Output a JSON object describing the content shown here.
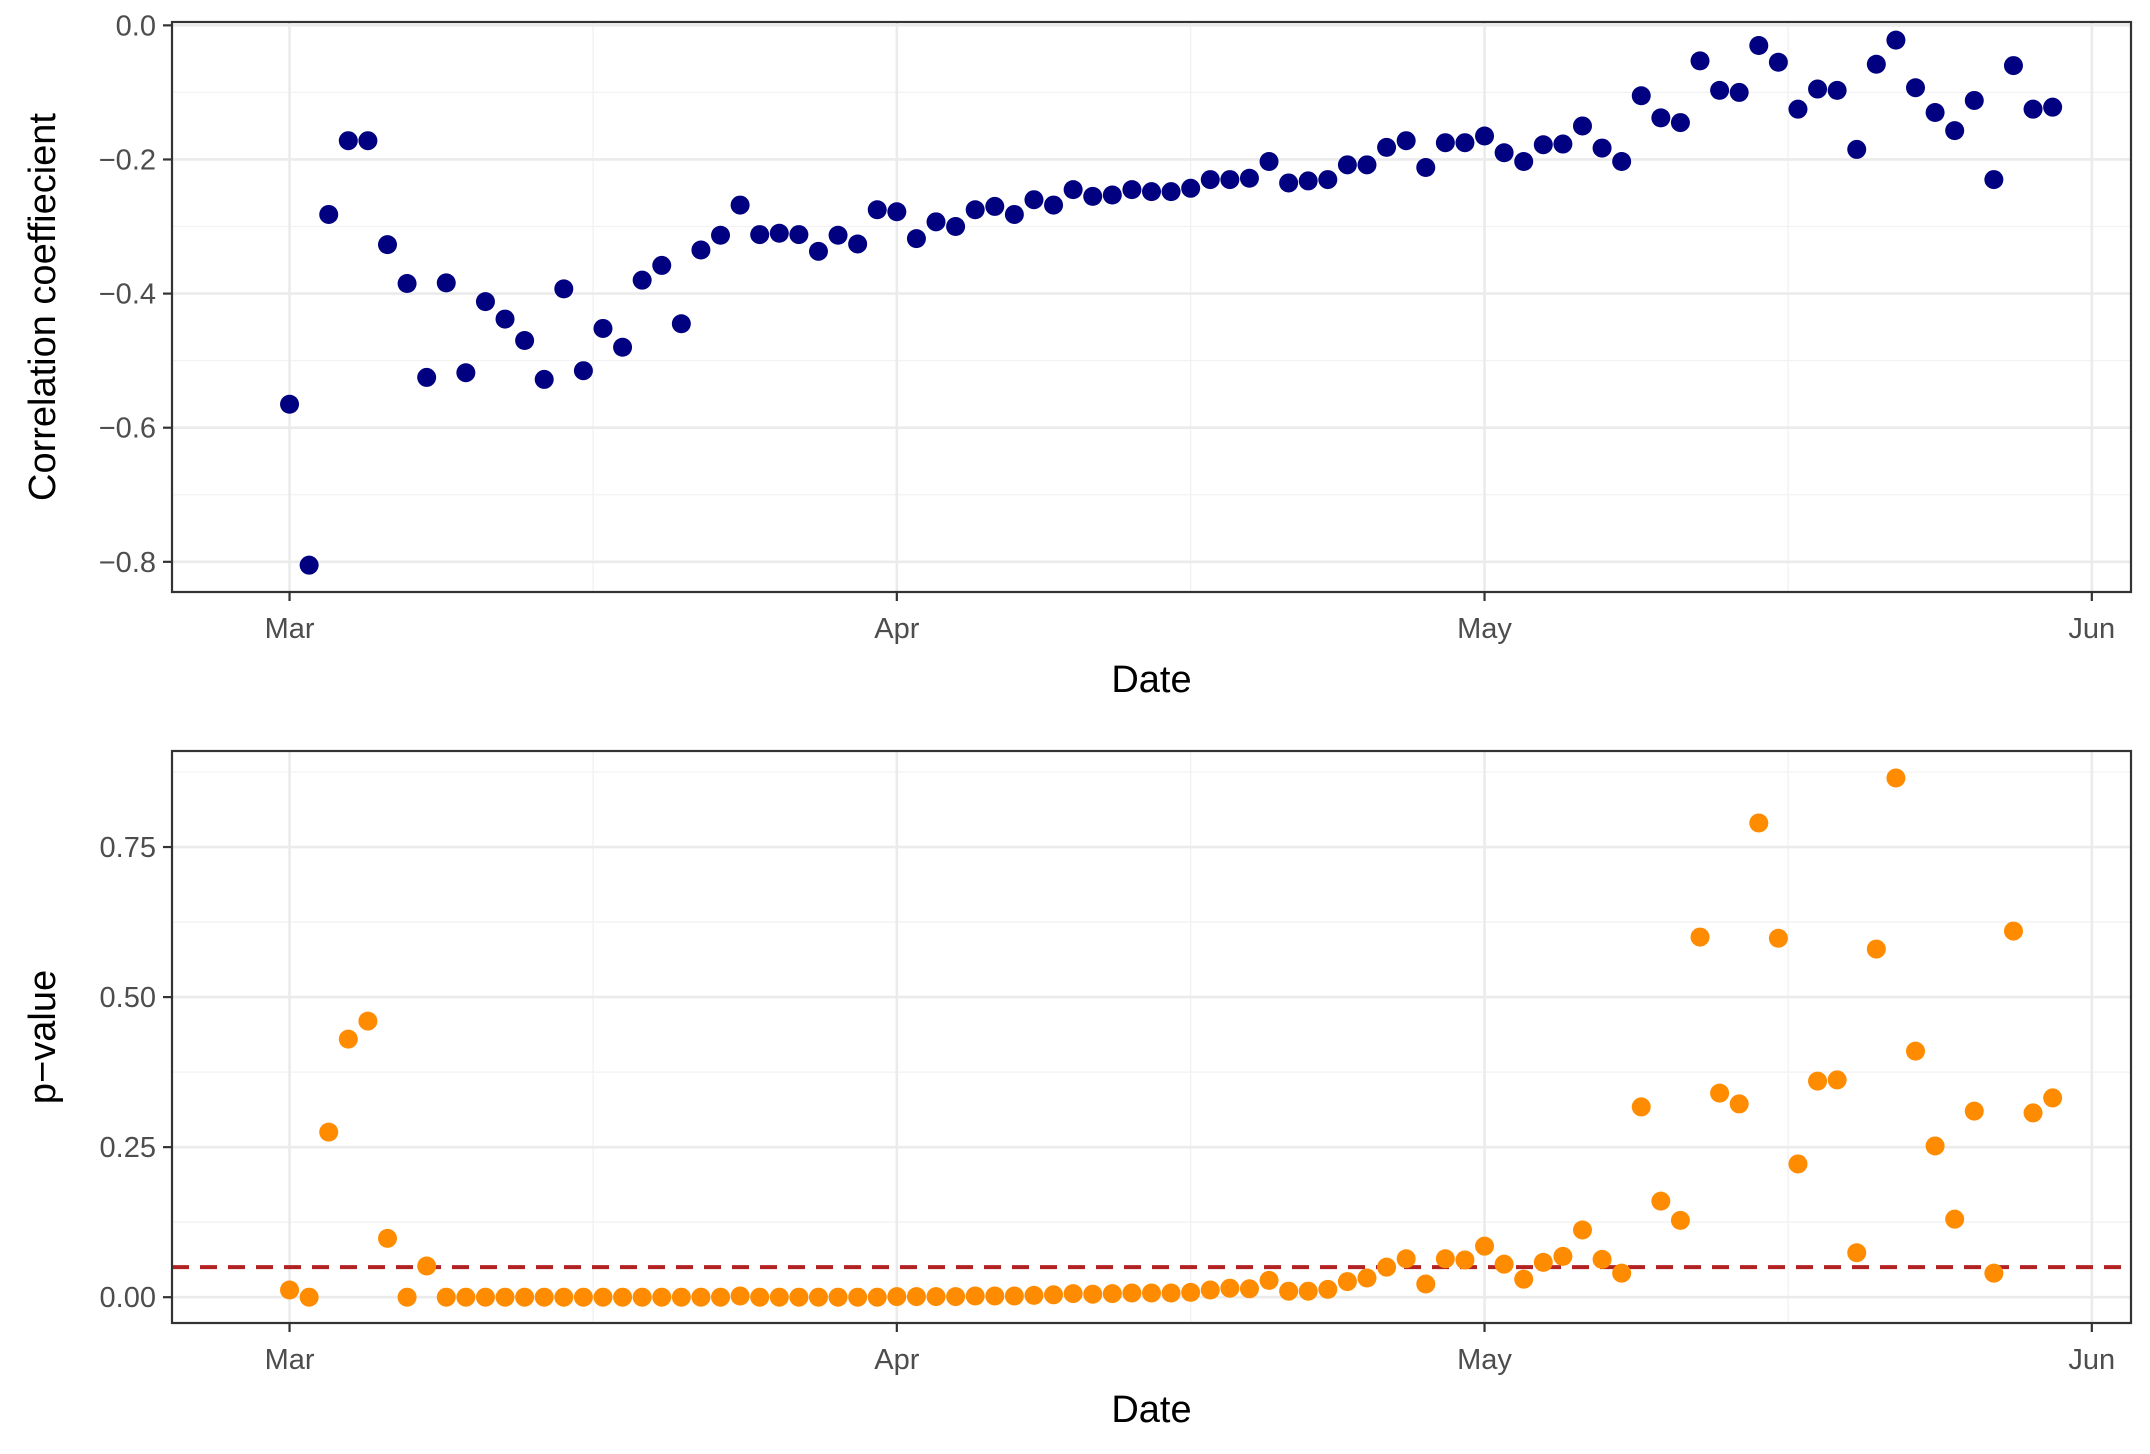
{
  "chart_data": [
    {
      "type": "scatter",
      "title": "",
      "xlabel": "Date",
      "ylabel": "Correlation coeffiecient",
      "xlim": [
        "2020-02-24",
        "2020-06-03"
      ],
      "ylim": [
        -0.845,
        0.005
      ],
      "x_ticks": [
        {
          "date": "2020-03-01",
          "label": "Mar"
        },
        {
          "date": "2020-04-01",
          "label": "Apr"
        },
        {
          "date": "2020-05-01",
          "label": "May"
        },
        {
          "date": "2020-06-01",
          "label": "Jun"
        }
      ],
      "y_ticks": [
        0.0,
        -0.2,
        -0.4,
        -0.6,
        -0.8
      ],
      "y_tick_labels": [
        "0.0",
        "−0.2",
        "−0.4",
        "−0.6",
        "−0.8"
      ],
      "grid": true,
      "color": "#000080",
      "x": [
        "2020-03-01",
        "2020-03-02",
        "2020-03-03",
        "2020-03-04",
        "2020-03-05",
        "2020-03-06",
        "2020-03-07",
        "2020-03-08",
        "2020-03-09",
        "2020-03-10",
        "2020-03-11",
        "2020-03-12",
        "2020-03-13",
        "2020-03-14",
        "2020-03-15",
        "2020-03-16",
        "2020-03-17",
        "2020-03-18",
        "2020-03-19",
        "2020-03-20",
        "2020-03-21",
        "2020-03-22",
        "2020-03-23",
        "2020-03-24",
        "2020-03-25",
        "2020-03-26",
        "2020-03-27",
        "2020-03-28",
        "2020-03-29",
        "2020-03-30",
        "2020-03-31",
        "2020-04-01",
        "2020-04-02",
        "2020-04-03",
        "2020-04-04",
        "2020-04-05",
        "2020-04-06",
        "2020-04-07",
        "2020-04-08",
        "2020-04-09",
        "2020-04-10",
        "2020-04-11",
        "2020-04-12",
        "2020-04-13",
        "2020-04-14",
        "2020-04-15",
        "2020-04-16",
        "2020-04-17",
        "2020-04-18",
        "2020-04-19",
        "2020-04-20",
        "2020-04-21",
        "2020-04-22",
        "2020-04-23",
        "2020-04-24",
        "2020-04-25",
        "2020-04-26",
        "2020-04-27",
        "2020-04-28",
        "2020-04-29",
        "2020-04-30",
        "2020-05-01",
        "2020-05-02",
        "2020-05-03",
        "2020-05-04",
        "2020-05-05",
        "2020-05-06",
        "2020-05-07",
        "2020-05-08",
        "2020-05-09",
        "2020-05-10",
        "2020-05-11",
        "2020-05-12",
        "2020-05-13",
        "2020-05-14",
        "2020-05-15",
        "2020-05-16",
        "2020-05-17",
        "2020-05-18",
        "2020-05-19",
        "2020-05-20",
        "2020-05-21",
        "2020-05-22",
        "2020-05-23",
        "2020-05-24",
        "2020-05-25",
        "2020-05-26",
        "2020-05-27",
        "2020-05-28",
        "2020-05-29",
        "2020-05-30",
        "2020-05-31"
      ],
      "y": [
        -0.565,
        -0.805,
        -0.282,
        -0.172,
        -0.172,
        -0.327,
        -0.385,
        -0.525,
        -0.384,
        -0.518,
        -0.412,
        -0.438,
        -0.47,
        -0.528,
        -0.393,
        -0.515,
        -0.452,
        -0.48,
        -0.38,
        -0.358,
        -0.445,
        -0.335,
        -0.313,
        -0.268,
        -0.312,
        -0.31,
        -0.312,
        -0.337,
        -0.313,
        -0.326,
        -0.275,
        -0.278,
        -0.318,
        -0.293,
        -0.3,
        -0.275,
        -0.27,
        -0.282,
        -0.26,
        -0.268,
        -0.245,
        -0.255,
        -0.253,
        -0.245,
        -0.248,
        -0.248,
        -0.243,
        -0.23,
        -0.23,
        -0.228,
        -0.203,
        -0.235,
        -0.232,
        -0.23,
        -0.208,
        -0.208,
        -0.182,
        -0.172,
        -0.212,
        -0.175,
        -0.175,
        -0.165,
        -0.19,
        -0.203,
        -0.178,
        -0.177,
        -0.15,
        -0.183,
        -0.203,
        -0.105,
        -0.138,
        -0.145,
        -0.053,
        -0.097,
        -0.1,
        -0.03,
        -0.055,
        -0.125,
        -0.095,
        -0.097,
        -0.185,
        -0.058,
        -0.022,
        -0.093,
        -0.13,
        -0.157,
        -0.112,
        -0.23,
        -0.06,
        -0.125,
        -0.122,
        null
      ]
    },
    {
      "type": "scatter",
      "title": "",
      "xlabel": "Date",
      "ylabel": "p−value",
      "xlim": [
        "2020-02-24",
        "2020-06-03"
      ],
      "ylim": [
        -0.043,
        0.91
      ],
      "x_ticks": [
        {
          "date": "2020-03-01",
          "label": "Mar"
        },
        {
          "date": "2020-04-01",
          "label": "Apr"
        },
        {
          "date": "2020-05-01",
          "label": "May"
        },
        {
          "date": "2020-06-01",
          "label": "Jun"
        }
      ],
      "y_ticks": [
        0.0,
        0.25,
        0.5,
        0.75
      ],
      "y_tick_labels": [
        "0.00",
        "0.25",
        "0.50",
        "0.75"
      ],
      "grid": true,
      "color": "#FF8C00",
      "reference_line": {
        "y": 0.05,
        "style": "dashed",
        "color": "#B22222"
      },
      "x": [
        "2020-03-01",
        "2020-03-02",
        "2020-03-03",
        "2020-03-04",
        "2020-03-05",
        "2020-03-06",
        "2020-03-07",
        "2020-03-08",
        "2020-03-09",
        "2020-03-10",
        "2020-03-11",
        "2020-03-12",
        "2020-03-13",
        "2020-03-14",
        "2020-03-15",
        "2020-03-16",
        "2020-03-17",
        "2020-03-18",
        "2020-03-19",
        "2020-03-20",
        "2020-03-21",
        "2020-03-22",
        "2020-03-23",
        "2020-03-24",
        "2020-03-25",
        "2020-03-26",
        "2020-03-27",
        "2020-03-28",
        "2020-03-29",
        "2020-03-30",
        "2020-03-31",
        "2020-04-01",
        "2020-04-02",
        "2020-04-03",
        "2020-04-04",
        "2020-04-05",
        "2020-04-06",
        "2020-04-07",
        "2020-04-08",
        "2020-04-09",
        "2020-04-10",
        "2020-04-11",
        "2020-04-12",
        "2020-04-13",
        "2020-04-14",
        "2020-04-15",
        "2020-04-16",
        "2020-04-17",
        "2020-04-18",
        "2020-04-19",
        "2020-04-20",
        "2020-04-21",
        "2020-04-22",
        "2020-04-23",
        "2020-04-24",
        "2020-04-25",
        "2020-04-26",
        "2020-04-27",
        "2020-04-28",
        "2020-04-29",
        "2020-04-30",
        "2020-05-01",
        "2020-05-02",
        "2020-05-03",
        "2020-05-04",
        "2020-05-05",
        "2020-05-06",
        "2020-05-07",
        "2020-05-08",
        "2020-05-09",
        "2020-05-10",
        "2020-05-11",
        "2020-05-12",
        "2020-05-13",
        "2020-05-14",
        "2020-05-15",
        "2020-05-16",
        "2020-05-17",
        "2020-05-18",
        "2020-05-19",
        "2020-05-20",
        "2020-05-21",
        "2020-05-22",
        "2020-05-23",
        "2020-05-24",
        "2020-05-25",
        "2020-05-26",
        "2020-05-27",
        "2020-05-28",
        "2020-05-29",
        "2020-05-30",
        "2020-05-31"
      ],
      "y": [
        0.012,
        0.0,
        0.275,
        0.43,
        0.46,
        0.098,
        0.0,
        0.052,
        0.0,
        0.0,
        0.0,
        0.0,
        0.0,
        0.0,
        0.0,
        0.0,
        0.0,
        0.0,
        0.0,
        0.0,
        0.0,
        0.0,
        0.0,
        0.002,
        0.0,
        0.0,
        0.0,
        0.0,
        0.0,
        0.0,
        0.0,
        0.001,
        0.001,
        0.001,
        0.001,
        0.002,
        0.002,
        0.002,
        0.003,
        0.004,
        0.006,
        0.005,
        0.006,
        0.007,
        0.007,
        0.007,
        0.008,
        0.012,
        0.015,
        0.014,
        0.028,
        0.01,
        0.01,
        0.013,
        0.026,
        0.032,
        0.05,
        0.064,
        0.022,
        0.064,
        0.062,
        0.085,
        0.055,
        0.03,
        0.058,
        0.068,
        0.112,
        0.063,
        0.04,
        0.317,
        0.16,
        0.128,
        0.6,
        0.34,
        0.322,
        0.79,
        0.598,
        0.222,
        0.36,
        0.362,
        0.074,
        0.58,
        0.865,
        0.41,
        0.252,
        0.13,
        0.31,
        0.04,
        0.61,
        0.307,
        0.332,
        null
      ]
    }
  ]
}
